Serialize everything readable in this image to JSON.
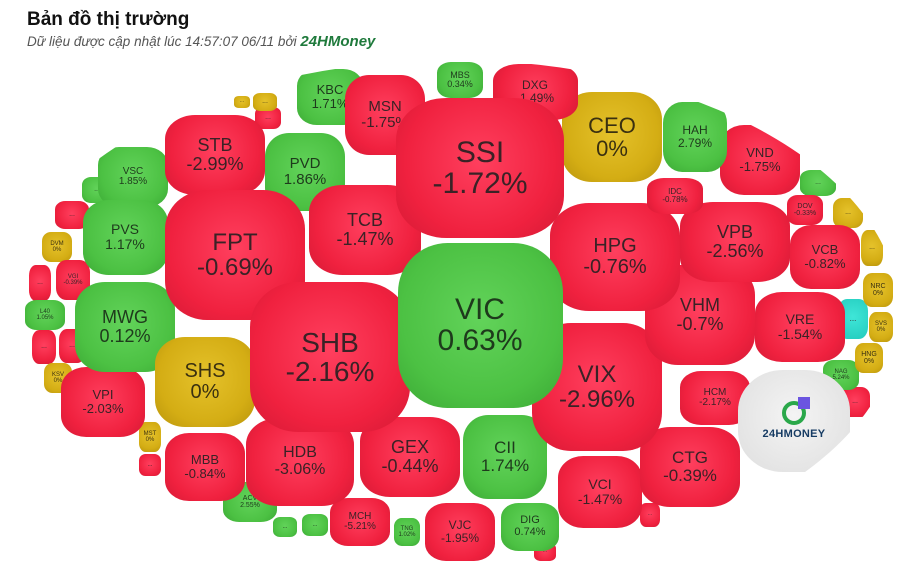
{
  "header": {
    "title": "Bản đồ thị trường",
    "subtitle": "Dữ liệu được cập nhật lúc 14:57:07 06/11 bởi",
    "brand": "24HMoney"
  },
  "colors": {
    "down": "#f0213f",
    "up": "#4cc143",
    "flat": "#d4ad14",
    "ceiling": "#22cbbd"
  },
  "logo_text": "24HMONEY",
  "cells": [
    {
      "ticker": "VIC",
      "change": "0.63%",
      "trend": "green"
    },
    {
      "ticker": "SSI",
      "change": "-1.72%",
      "trend": "red"
    },
    {
      "ticker": "SHB",
      "change": "-2.16%",
      "trend": "red"
    },
    {
      "ticker": "FPT",
      "change": "-0.69%",
      "trend": "red"
    },
    {
      "ticker": "TCB",
      "change": "-1.47%",
      "trend": "red"
    },
    {
      "ticker": "STB",
      "change": "-2.99%",
      "trend": "red"
    },
    {
      "ticker": "MSN",
      "change": "-1.75%",
      "trend": "red"
    },
    {
      "ticker": "KBC",
      "change": "1.71%",
      "trend": "green"
    },
    {
      "ticker": "PVD",
      "change": "1.86%",
      "trend": "green"
    },
    {
      "ticker": "MBS",
      "change": "0.34%",
      "trend": "green"
    },
    {
      "ticker": "DXG",
      "change": "-1.49%",
      "trend": "red"
    },
    {
      "ticker": "CEO",
      "change": "0%",
      "trend": "yellow"
    },
    {
      "ticker": "HAH",
      "change": "2.79%",
      "trend": "green"
    },
    {
      "ticker": "VND",
      "change": "-1.75%",
      "trend": "red"
    },
    {
      "ticker": "IDC",
      "change": "-0.78%",
      "trend": "red"
    },
    {
      "ticker": "DOV",
      "change": "-0.33%",
      "trend": "red"
    },
    {
      "ticker": "HPG",
      "change": "-0.76%",
      "trend": "red"
    },
    {
      "ticker": "VPB",
      "change": "-2.56%",
      "trend": "red"
    },
    {
      "ticker": "VCB",
      "change": "-0.82%",
      "trend": "red"
    },
    {
      "ticker": "NRC",
      "change": "0%",
      "trend": "yellow"
    },
    {
      "ticker": "SVS",
      "change": "0%",
      "trend": "yellow"
    },
    {
      "ticker": "VHM",
      "change": "-0.7%",
      "trend": "red"
    },
    {
      "ticker": "VRE",
      "change": "-1.54%",
      "trend": "red"
    },
    {
      "ticker": "HNG",
      "change": "0%",
      "trend": "yellow"
    },
    {
      "ticker": "NAG",
      "change": "5.24%",
      "trend": "green"
    },
    {
      "ticker": "VIX",
      "change": "-2.96%",
      "trend": "red"
    },
    {
      "ticker": "HCM",
      "change": "-2.17%",
      "trend": "red"
    },
    {
      "ticker": "CTG",
      "change": "-0.39%",
      "trend": "red"
    },
    {
      "ticker": "VCI",
      "change": "-1.47%",
      "trend": "red"
    },
    {
      "ticker": "CII",
      "change": "1.74%",
      "trend": "green"
    },
    {
      "ticker": "GEX",
      "change": "-0.44%",
      "trend": "red"
    },
    {
      "ticker": "HDB",
      "change": "-3.06%",
      "trend": "red"
    },
    {
      "ticker": "MBB",
      "change": "-0.84%",
      "trend": "red"
    },
    {
      "ticker": "SHS",
      "change": "0%",
      "trend": "yellow"
    },
    {
      "ticker": "MWG",
      "change": "0.12%",
      "trend": "green"
    },
    {
      "ticker": "PVS",
      "change": "1.17%",
      "trend": "green"
    },
    {
      "ticker": "VSC",
      "change": "1.85%",
      "trend": "green"
    },
    {
      "ticker": "VPI",
      "change": "-2.03%",
      "trend": "red"
    },
    {
      "ticker": "VJC",
      "change": "-1.95%",
      "trend": "red"
    },
    {
      "ticker": "DIG",
      "change": "0.74%",
      "trend": "green"
    },
    {
      "ticker": "MCH",
      "change": "-5.21%",
      "trend": "red"
    },
    {
      "ticker": "TNG",
      "change": "1.02%",
      "trend": "green"
    },
    {
      "ticker": "ACV",
      "change": "2.55%",
      "trend": "green"
    },
    {
      "ticker": "MST",
      "change": "0%",
      "trend": "yellow"
    },
    {
      "ticker": "KSV",
      "change": "0%",
      "trend": "yellow"
    },
    {
      "ticker": "L40",
      "change": "1.05%",
      "trend": "green"
    },
    {
      "ticker": "VGI",
      "change": "-0.39%",
      "trend": "red"
    },
    {
      "ticker": "DVM",
      "change": "0%",
      "trend": "yellow"
    },
    {
      "ticker": "...",
      "change": "",
      "trend": "green"
    },
    {
      "ticker": "...",
      "change": "",
      "trend": "yellow"
    },
    {
      "ticker": "...",
      "change": "",
      "trend": "yellow"
    },
    {
      "ticker": "...",
      "change": "",
      "trend": "cyan"
    },
    {
      "ticker": "...",
      "change": "",
      "trend": "red"
    },
    {
      "ticker": "...",
      "change": "",
      "trend": "red"
    },
    {
      "ticker": "...",
      "change": "",
      "trend": "red"
    },
    {
      "ticker": "...",
      "change": "",
      "trend": "red"
    },
    {
      "ticker": "...",
      "change": "",
      "trend": "red"
    },
    {
      "ticker": "...",
      "change": "",
      "trend": "green"
    },
    {
      "ticker": "...",
      "change": "",
      "trend": "yellow"
    },
    {
      "ticker": "...",
      "change": "",
      "trend": "red"
    },
    {
      "ticker": "...",
      "change": "",
      "trend": "yellow"
    },
    {
      "ticker": "...",
      "change": "",
      "trend": "green"
    },
    {
      "ticker": "...",
      "change": "",
      "trend": "green"
    },
    {
      "ticker": "...",
      "change": "",
      "trend": "red"
    },
    {
      "ticker": "...",
      "change": "",
      "trend": "red"
    },
    {
      "ticker": "...",
      "change": "",
      "trend": "red"
    }
  ]
}
